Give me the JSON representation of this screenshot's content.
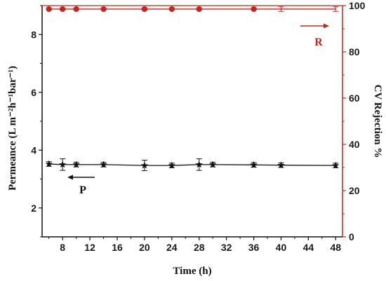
{
  "chart_data": {
    "type": "line",
    "xlabel": "Time (h)",
    "ylabel_left": "Permeance (L m⁻²h⁻¹bar⁻¹)",
    "ylabel_right": "CV Rejection %",
    "x_ticks": [
      8,
      12,
      16,
      20,
      24,
      28,
      32,
      36,
      40,
      44,
      48
    ],
    "xlim": [
      5,
      49
    ],
    "ylim_left": [
      1.0,
      9.0
    ],
    "y_ticks_left": [
      2,
      4,
      6,
      8
    ],
    "ylim_right": [
      0,
      100
    ],
    "y_ticks_right": [
      0,
      20,
      40,
      60,
      80,
      100
    ],
    "grid": false,
    "series": [
      {
        "axis": "left",
        "marker": "star",
        "color": "#111111",
        "x": [
          6,
          8,
          10,
          14,
          20,
          24,
          28,
          30,
          36,
          40,
          48
        ],
        "y": [
          3.52,
          3.5,
          3.5,
          3.5,
          3.47,
          3.47,
          3.5,
          3.5,
          3.49,
          3.48,
          3.47
        ],
        "err": [
          0.08,
          0.2,
          0.08,
          0.08,
          0.18,
          0.08,
          0.2,
          0.08,
          0.08,
          0.08,
          0.08
        ]
      },
      {
        "axis": "right",
        "marker": "circle",
        "color": "#c0281e",
        "x": [
          6,
          8,
          10,
          14,
          20,
          24,
          28,
          36,
          40,
          48
        ],
        "y": [
          98.5,
          98.5,
          98.5,
          98.5,
          98.5,
          98.5,
          98.5,
          98.5,
          98.5,
          98.5
        ],
        "err": [
          0.3,
          0.3,
          0.3,
          0.3,
          0.5,
          0.3,
          0.3,
          0.4,
          1.0,
          1.0
        ],
        "show_marker": [
          true,
          true,
          true,
          true,
          true,
          true,
          true,
          true,
          false,
          false
        ]
      }
    ],
    "annotations": {
      "P": {
        "text": "P",
        "color": "#111111"
      },
      "R": {
        "text": "R",
        "color": "#c0281e"
      }
    },
    "right_axis_color": "#c0281e"
  }
}
